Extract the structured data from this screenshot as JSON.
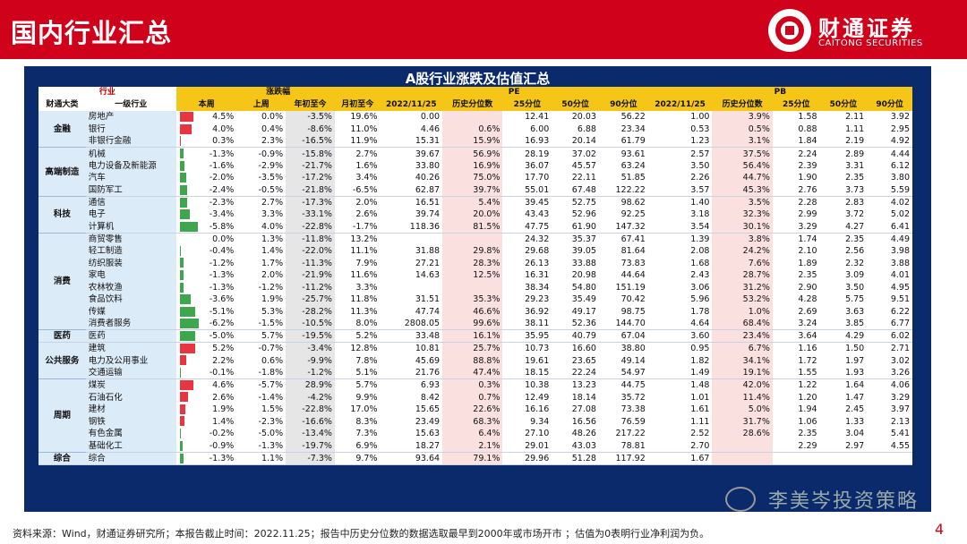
{
  "header": {
    "title": "国内行业汇总",
    "logo_cn": "财通证券",
    "logo_en": "CAITONG SECURITIES"
  },
  "table": {
    "title": "A股行业涨跌及估值汇总",
    "group_headers": {
      "industry": "行业",
      "change": "涨跌幅",
      "pe": "PE",
      "pb": "PB"
    },
    "col_headers": [
      "财通大类",
      "一级行业",
      "本周",
      "上周",
      "年初至今",
      "月初至今",
      "2022/11/25",
      "历史分位数",
      "25分位",
      "50分位",
      "90分位",
      "2022/11/25",
      "历史分位数",
      "25分位",
      "50分位",
      "90分位"
    ],
    "groups": [
      {
        "category": "金融",
        "rows": [
          {
            "ind": "房地产",
            "wk": "4.5%",
            "wkv": 4.5,
            "lw": "0.0%",
            "ytd": "-3.5%",
            "mtd": "19.6%",
            "pe": "0.00",
            "pep": "",
            "pe25": "12.41",
            "pe50": "20.03",
            "pe90": "56.22",
            "pb": "1.00",
            "pbp": "3.9%",
            "pb25": "1.58",
            "pb50": "2.11",
            "pb90": "3.92"
          },
          {
            "ind": "银行",
            "wk": "4.0%",
            "wkv": 4.0,
            "lw": "0.4%",
            "ytd": "-8.6%",
            "mtd": "11.0%",
            "pe": "4.46",
            "pep": "0.6%",
            "pe25": "6.00",
            "pe50": "6.88",
            "pe90": "23.34",
            "pb": "0.53",
            "pbp": "0.5%",
            "pb25": "0.88",
            "pb50": "1.11",
            "pb90": "2.95"
          },
          {
            "ind": "非银行金融",
            "wk": "0.3%",
            "wkv": 0.3,
            "lw": "2.3%",
            "ytd": "-16.5%",
            "mtd": "11.9%",
            "pe": "15.31",
            "pep": "15.9%",
            "pe25": "16.93",
            "pe50": "20.14",
            "pe90": "61.79",
            "pb": "1.23",
            "pbp": "3.1%",
            "pb25": "1.84",
            "pb50": "2.19",
            "pb90": "4.92"
          }
        ]
      },
      {
        "category": "高端制造",
        "rows": [
          {
            "ind": "机械",
            "wk": "-1.3%",
            "wkv": -1.3,
            "lw": "-0.9%",
            "ytd": "-15.8%",
            "mtd": "2.7%",
            "pe": "39.67",
            "pep": "56.9%",
            "pe25": "28.19",
            "pe50": "37.02",
            "pe90": "93.61",
            "pb": "2.57",
            "pbp": "37.5%",
            "pb25": "2.24",
            "pb50": "2.89",
            "pb90": "4.44"
          },
          {
            "ind": "电力设备及新能源",
            "wk": "-1.6%",
            "wkv": -1.6,
            "lw": "-2.9%",
            "ytd": "-21.7%",
            "mtd": "1.6%",
            "pe": "33.80",
            "pep": "16.9%",
            "pe25": "36.07",
            "pe50": "45.57",
            "pe90": "63.24",
            "pb": "3.50",
            "pbp": "56.4%",
            "pb25": "2.39",
            "pb50": "3.31",
            "pb90": "6.12"
          },
          {
            "ind": "汽车",
            "wk": "-2.0%",
            "wkv": -2.0,
            "lw": "-3.5%",
            "ytd": "-17.2%",
            "mtd": "3.4%",
            "pe": "40.26",
            "pep": "75.0%",
            "pe25": "17.70",
            "pe50": "22.11",
            "pe90": "51.85",
            "pb": "2.26",
            "pbp": "44.7%",
            "pb25": "1.90",
            "pb50": "2.35",
            "pb90": "3.80"
          },
          {
            "ind": "国防军工",
            "wk": "-2.4%",
            "wkv": -2.4,
            "lw": "-0.5%",
            "ytd": "-21.8%",
            "mtd": "-6.5%",
            "pe": "62.87",
            "pep": "39.7%",
            "pe25": "55.01",
            "pe50": "67.48",
            "pe90": "122.22",
            "pb": "3.57",
            "pbp": "45.3%",
            "pb25": "2.76",
            "pb50": "3.73",
            "pb90": "5.59"
          }
        ]
      },
      {
        "category": "科技",
        "rows": [
          {
            "ind": "通信",
            "wk": "-2.3%",
            "wkv": -2.3,
            "lw": "2.7%",
            "ytd": "-17.3%",
            "mtd": "2.0%",
            "pe": "16.51",
            "pep": "5.4%",
            "pe25": "39.45",
            "pe50": "52.75",
            "pe90": "98.62",
            "pb": "1.40",
            "pbp": "3.5%",
            "pb25": "2.28",
            "pb50": "2.83",
            "pb90": "4.02"
          },
          {
            "ind": "电子",
            "wk": "-3.4%",
            "wkv": -3.4,
            "lw": "3.3%",
            "ytd": "-33.1%",
            "mtd": "2.6%",
            "pe": "39.74",
            "pep": "20.0%",
            "pe25": "43.43",
            "pe50": "52.96",
            "pe90": "92.25",
            "pb": "3.18",
            "pbp": "32.3%",
            "pb25": "2.99",
            "pb50": "3.72",
            "pb90": "5.02"
          },
          {
            "ind": "计算机",
            "wk": "-5.8%",
            "wkv": -5.8,
            "lw": "4.0%",
            "ytd": "-22.8%",
            "mtd": "-1.7%",
            "pe": "118.36",
            "pep": "81.5%",
            "pe25": "47.75",
            "pe50": "61.90",
            "pe90": "147.32",
            "pb": "3.54",
            "pbp": "30.1%",
            "pb25": "3.29",
            "pb50": "4.27",
            "pb90": "6.41"
          }
        ]
      },
      {
        "category": "消费",
        "rows": [
          {
            "ind": "商贸零售",
            "wk": "0.0%",
            "wkv": 0.0,
            "lw": "1.3%",
            "ytd": "-11.8%",
            "mtd": "13.2%",
            "pe": "",
            "pep": "",
            "pe25": "24.32",
            "pe50": "35.37",
            "pe90": "67.41",
            "pb": "1.39",
            "pbp": "3.8%",
            "pb25": "1.74",
            "pb50": "2.35",
            "pb90": "4.49"
          },
          {
            "ind": "轻工制造",
            "wk": "-0.4%",
            "wkv": -0.4,
            "lw": "1.4%",
            "ytd": "-22.0%",
            "mtd": "11.1%",
            "pe": "31.88",
            "pep": "29.8%",
            "pe25": "29.68",
            "pe50": "39.05",
            "pe90": "81.64",
            "pb": "2.08",
            "pbp": "24.2%",
            "pb25": "2.10",
            "pb50": "2.56",
            "pb90": "3.98"
          },
          {
            "ind": "纺织服装",
            "wk": "-1.2%",
            "wkv": -1.2,
            "lw": "1.7%",
            "ytd": "-11.3%",
            "mtd": "7.9%",
            "pe": "27.21",
            "pep": "28.3%",
            "pe25": "26.13",
            "pe50": "33.88",
            "pe90": "73.83",
            "pb": "1.68",
            "pbp": "7.6%",
            "pb25": "1.89",
            "pb50": "2.32",
            "pb90": "3.88"
          },
          {
            "ind": "家电",
            "wk": "-1.3%",
            "wkv": -1.3,
            "lw": "2.0%",
            "ytd": "-21.9%",
            "mtd": "11.6%",
            "pe": "14.63",
            "pep": "12.5%",
            "pe25": "16.31",
            "pe50": "20.98",
            "pe90": "44.64",
            "pb": "2.43",
            "pbp": "28.7%",
            "pb25": "2.35",
            "pb50": "3.09",
            "pb90": "4.01"
          },
          {
            "ind": "农林牧渔",
            "wk": "-1.3%",
            "wkv": -1.3,
            "lw": "-1.2%",
            "ytd": "-11.2%",
            "mtd": "3.3%",
            "pe": "",
            "pep": "",
            "pe25": "38.34",
            "pe50": "54.80",
            "pe90": "151.19",
            "pb": "3.06",
            "pbp": "31.2%",
            "pb25": "2.90",
            "pb50": "3.50",
            "pb90": "4.95"
          },
          {
            "ind": "食品饮料",
            "wk": "-3.6%",
            "wkv": -3.6,
            "lw": "1.9%",
            "ytd": "-25.7%",
            "mtd": "11.8%",
            "pe": "31.51",
            "pep": "35.3%",
            "pe25": "29.23",
            "pe50": "35.49",
            "pe90": "70.42",
            "pb": "5.96",
            "pbp": "53.2%",
            "pb25": "4.28",
            "pb50": "5.75",
            "pb90": "9.51"
          },
          {
            "ind": "传媒",
            "wk": "-5.1%",
            "wkv": -5.1,
            "lw": "5.3%",
            "ytd": "-28.2%",
            "mtd": "11.3%",
            "pe": "47.74",
            "pep": "46.6%",
            "pe25": "36.92",
            "pe50": "49.17",
            "pe90": "98.75",
            "pb": "1.78",
            "pbp": "1.0%",
            "pb25": "2.69",
            "pb50": "3.63",
            "pb90": "6.22"
          },
          {
            "ind": "消费者服务",
            "wk": "-6.2%",
            "wkv": -6.2,
            "lw": "-1.5%",
            "ytd": "-10.5%",
            "mtd": "8.0%",
            "pe": "2808.05",
            "pep": "99.6%",
            "pe25": "38.11",
            "pe50": "52.36",
            "pe90": "144.70",
            "pb": "4.64",
            "pbp": "68.4%",
            "pb25": "3.24",
            "pb50": "3.85",
            "pb90": "6.77"
          }
        ]
      },
      {
        "category": "医药",
        "rows": [
          {
            "ind": "医药",
            "wk": "-5.0%",
            "wkv": -5.0,
            "lw": "5.7%",
            "ytd": "-19.5%",
            "mtd": "5.2%",
            "pe": "33.48",
            "pep": "16.1%",
            "pe25": "35.95",
            "pe50": "40.79",
            "pe90": "67.04",
            "pb": "3.60",
            "pbp": "23.4%",
            "pb25": "3.64",
            "pb50": "4.29",
            "pb90": "6.02"
          }
        ]
      },
      {
        "category": "公共服务",
        "rows": [
          {
            "ind": "建筑",
            "wk": "5.2%",
            "wkv": 5.2,
            "lw": "-0.7%",
            "ytd": "-3.4%",
            "mtd": "12.8%",
            "pe": "10.81",
            "pep": "25.7%",
            "pe25": "10.73",
            "pe50": "16.60",
            "pe90": "38.80",
            "pb": "0.95",
            "pbp": "6.7%",
            "pb25": "1.16",
            "pb50": "1.50",
            "pb90": "2.71"
          },
          {
            "ind": "电力及公用事业",
            "wk": "2.2%",
            "wkv": 2.2,
            "lw": "0.6%",
            "ytd": "-9.9%",
            "mtd": "7.8%",
            "pe": "45.69",
            "pep": "88.8%",
            "pe25": "19.61",
            "pe50": "23.65",
            "pe90": "49.14",
            "pb": "1.82",
            "pbp": "34.1%",
            "pb25": "1.72",
            "pb50": "1.97",
            "pb90": "3.02"
          },
          {
            "ind": "交通运输",
            "wk": "-0.1%",
            "wkv": -0.1,
            "lw": "-1.8%",
            "ytd": "-1.2%",
            "mtd": "5.1%",
            "pe": "21.76",
            "pep": "47.4%",
            "pe25": "18.15",
            "pe50": "22.24",
            "pe90": "54.97",
            "pb": "1.49",
            "pbp": "19.1%",
            "pb25": "1.55",
            "pb50": "1.93",
            "pb90": "3.26"
          }
        ]
      },
      {
        "category": "周期",
        "rows": [
          {
            "ind": "煤炭",
            "wk": "4.6%",
            "wkv": 4.6,
            "lw": "-5.7%",
            "ytd": "28.9%",
            "mtd": "5.7%",
            "pe": "6.93",
            "pep": "0.3%",
            "pe25": "10.38",
            "pe50": "13.23",
            "pe90": "44.75",
            "pb": "1.48",
            "pbp": "42.0%",
            "pb25": "1.22",
            "pb50": "1.64",
            "pb90": "4.06"
          },
          {
            "ind": "石油石化",
            "wk": "2.6%",
            "wkv": 2.6,
            "lw": "-1.4%",
            "ytd": "-4.2%",
            "mtd": "9.9%",
            "pe": "8.42",
            "pep": "0.7%",
            "pe25": "12.49",
            "pe50": "18.14",
            "pe90": "35.72",
            "pb": "1.01",
            "pbp": "11.4%",
            "pb25": "1.20",
            "pb50": "1.47",
            "pb90": "3.29"
          },
          {
            "ind": "建材",
            "wk": "1.9%",
            "wkv": 1.9,
            "lw": "1.5%",
            "ytd": "-22.8%",
            "mtd": "17.0%",
            "pe": "15.65",
            "pep": "22.6%",
            "pe25": "16.16",
            "pe50": "27.08",
            "pe90": "73.38",
            "pb": "1.61",
            "pbp": "5.0%",
            "pb25": "1.94",
            "pb50": "2.45",
            "pb90": "3.97"
          },
          {
            "ind": "钢铁",
            "wk": "1.4%",
            "wkv": 1.4,
            "lw": "-2.3%",
            "ytd": "-16.6%",
            "mtd": "8.3%",
            "pe": "23.49",
            "pep": "68.3%",
            "pe25": "9.34",
            "pe50": "16.56",
            "pe90": "76.59",
            "pb": "1.11",
            "pbp": "31.7%",
            "pb25": "1.06",
            "pb50": "1.33",
            "pb90": "2.13"
          },
          {
            "ind": "有色金属",
            "wk": "-0.2%",
            "wkv": -0.2,
            "lw": "-5.0%",
            "ytd": "-13.4%",
            "mtd": "7.3%",
            "pe": "15.63",
            "pep": "6.4%",
            "pe25": "27.10",
            "pe50": "48.26",
            "pe90": "217.22",
            "pb": "2.52",
            "pbp": "28.6%",
            "pb25": "2.35",
            "pb50": "3.04",
            "pb90": "5.41"
          },
          {
            "ind": "基础化工",
            "wk": "-0.9%",
            "wkv": -0.9,
            "lw": "-1.3%",
            "ytd": "-19.7%",
            "mtd": "6.9%",
            "pe": "18.27",
            "pep": "2.1%",
            "pe25": "29.01",
            "pe50": "43.03",
            "pe90": "78.81",
            "pb": "2.70",
            "pbp": "",
            "pb25": "2.29",
            "pb50": "2.97",
            "pb90": "4.55"
          }
        ]
      },
      {
        "category": "综合",
        "rows": [
          {
            "ind": "综合",
            "wk": "-1.3%",
            "wkv": -1.3,
            "lw": "1.1%",
            "ytd": "-7.3%",
            "mtd": "9.7%",
            "pe": "93.64",
            "pep": "79.1%",
            "pe25": "29.96",
            "pe50": "51.28",
            "pe90": "117.92",
            "pb": "1.67",
            "pbp": "",
            "pb25": "",
            "pb50": "",
            "pb90": ""
          }
        ]
      }
    ]
  },
  "footer": {
    "source": "资料来源：Wind，财通证券研究所；本报告截止时间：2022.11.25；报告中历史分位数的数据选取最早到2000年或市场开市 ；估值为0表明行业净利润为负。",
    "page": "4"
  },
  "watermark": {
    "text": "李美岑投资策略"
  },
  "colors": {
    "brand_red": "#d0021b",
    "panel_navy": "#0b2a6b",
    "header_gold": "#f5c518",
    "bar_up": "#e8353f",
    "bar_down": "#3ea64d"
  }
}
